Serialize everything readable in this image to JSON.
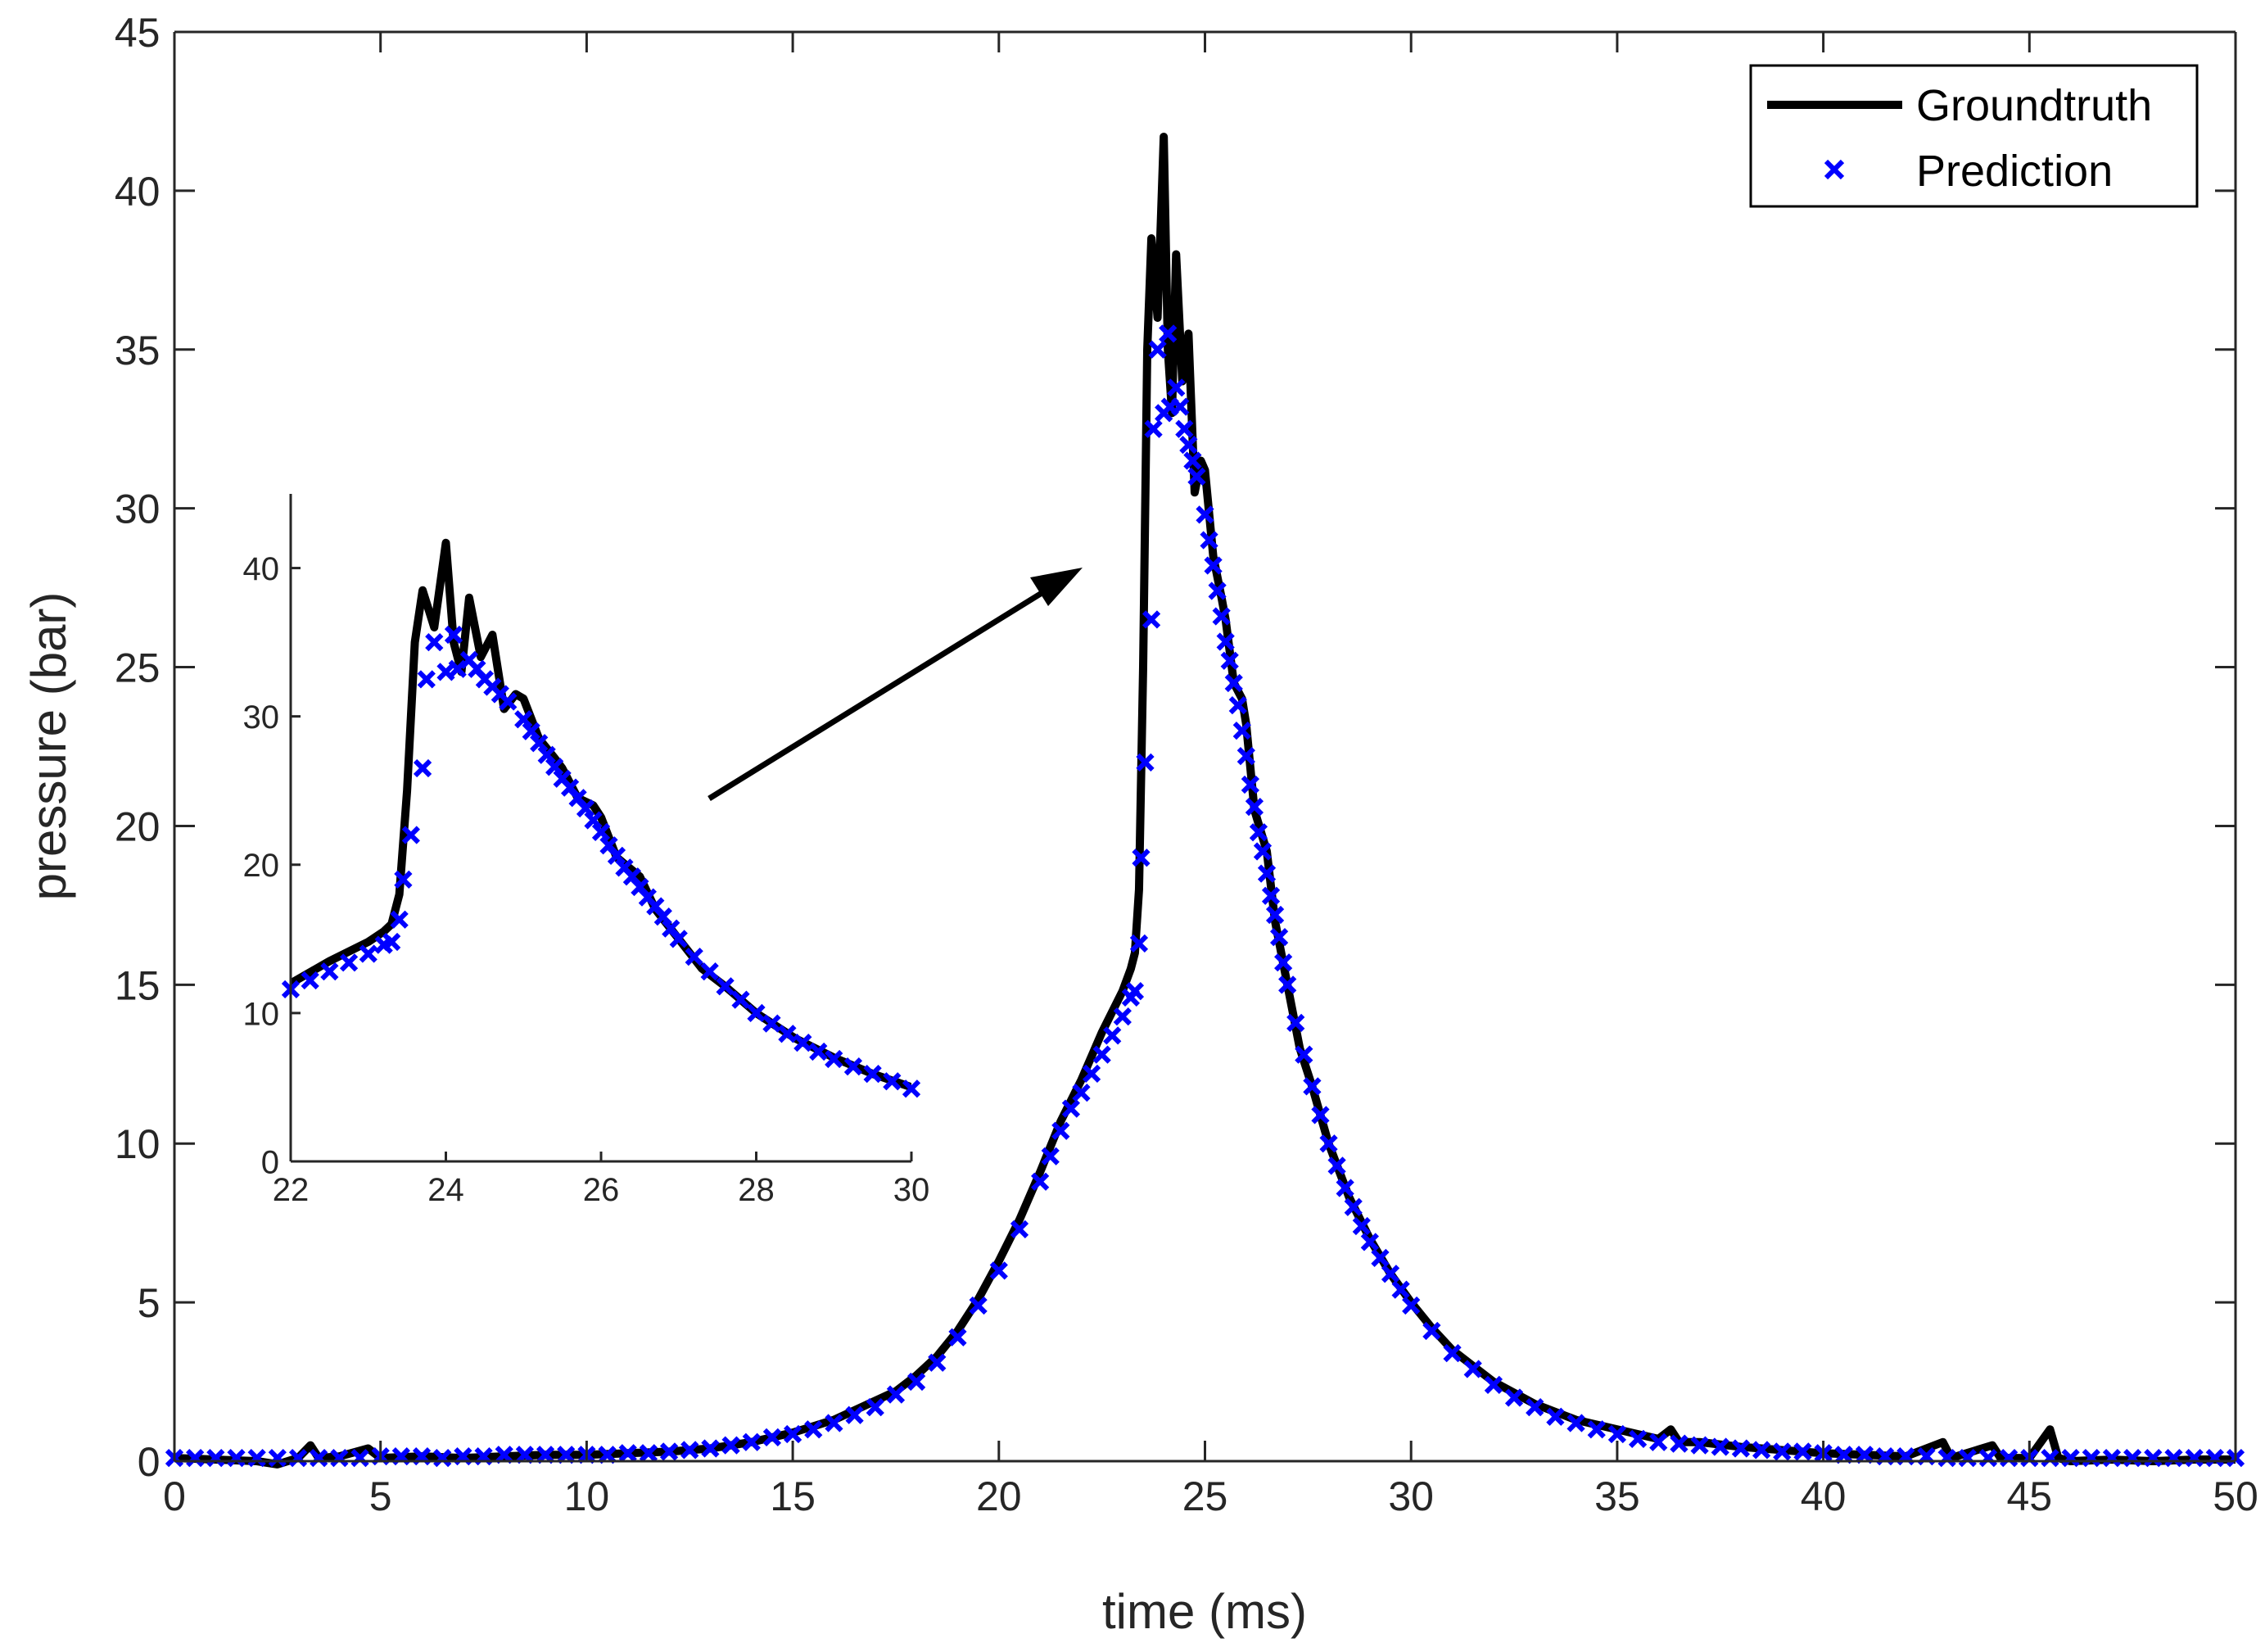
{
  "chart_data": {
    "type": "line",
    "xlabel": "time (ms)",
    "ylabel": "pressure (bar)",
    "xlim": [
      0,
      50
    ],
    "ylim": [
      0,
      45
    ],
    "xticks": [
      0,
      5,
      10,
      15,
      20,
      25,
      30,
      35,
      40,
      45,
      50
    ],
    "yticks": [
      0,
      5,
      10,
      15,
      20,
      25,
      30,
      35,
      40,
      45
    ],
    "grid": false,
    "legend_placement": "top-right",
    "series": [
      {
        "name": "Groundtruth",
        "style": "line",
        "color": "#000000",
        "points": [
          [
            0,
            0.1
          ],
          [
            1,
            0.05
          ],
          [
            2,
            0.0
          ],
          [
            2.5,
            -0.1
          ],
          [
            3,
            0.1
          ],
          [
            3.3,
            0.5
          ],
          [
            3.5,
            0.1
          ],
          [
            4,
            0.15
          ],
          [
            4.7,
            0.4
          ],
          [
            5,
            0.1
          ],
          [
            6,
            0.15
          ],
          [
            7,
            0.1
          ],
          [
            8,
            0.15
          ],
          [
            9,
            0.2
          ],
          [
            10,
            0.2
          ],
          [
            11,
            0.25
          ],
          [
            12,
            0.3
          ],
          [
            13,
            0.4
          ],
          [
            14,
            0.6
          ],
          [
            15,
            0.9
          ],
          [
            15.5,
            1.1
          ],
          [
            16,
            1.3
          ],
          [
            16.5,
            1.6
          ],
          [
            17,
            1.9
          ],
          [
            17.5,
            2.2
          ],
          [
            18,
            2.7
          ],
          [
            18.5,
            3.3
          ],
          [
            19,
            4.1
          ],
          [
            19.5,
            5.1
          ],
          [
            20,
            6.3
          ],
          [
            20.5,
            7.6
          ],
          [
            21,
            9.1
          ],
          [
            21.5,
            10.7
          ],
          [
            22,
            12.0
          ],
          [
            22.5,
            13.5
          ],
          [
            23,
            14.8
          ],
          [
            23.2,
            15.5
          ],
          [
            23.3,
            16
          ],
          [
            23.4,
            18
          ],
          [
            23.5,
            25
          ],
          [
            23.6,
            35
          ],
          [
            23.7,
            38.5
          ],
          [
            23.85,
            36
          ],
          [
            24.0,
            41.7
          ],
          [
            24.1,
            35
          ],
          [
            24.2,
            33
          ],
          [
            24.3,
            38
          ],
          [
            24.45,
            34
          ],
          [
            24.6,
            35.5
          ],
          [
            24.75,
            30.5
          ],
          [
            24.9,
            31.5
          ],
          [
            25.0,
            31.2
          ],
          [
            25.2,
            28.5
          ],
          [
            25.4,
            27.2
          ],
          [
            25.5,
            26.5
          ],
          [
            25.7,
            24.5
          ],
          [
            25.9,
            24
          ],
          [
            26.0,
            23.2
          ],
          [
            26.2,
            20.5
          ],
          [
            26.5,
            19.2
          ],
          [
            26.7,
            17
          ],
          [
            27.0,
            15
          ],
          [
            27.3,
            13
          ],
          [
            27.6,
            11.8
          ],
          [
            28,
            10
          ],
          [
            28.5,
            8.3
          ],
          [
            29,
            7
          ],
          [
            29.5,
            5.9
          ],
          [
            30,
            5
          ],
          [
            30.5,
            4.2
          ],
          [
            31,
            3.5
          ],
          [
            31.5,
            3
          ],
          [
            32,
            2.5
          ],
          [
            33,
            1.8
          ],
          [
            34,
            1.3
          ],
          [
            35,
            1.0
          ],
          [
            36,
            0.7
          ],
          [
            36.3,
            1.0
          ],
          [
            36.5,
            0.6
          ],
          [
            37,
            0.6
          ],
          [
            38,
            0.45
          ],
          [
            39,
            0.35
          ],
          [
            40,
            0.25
          ],
          [
            41,
            0.2
          ],
          [
            42,
            0.15
          ],
          [
            42.9,
            0.6
          ],
          [
            43.1,
            0.1
          ],
          [
            44.1,
            0.5
          ],
          [
            44.3,
            0.1
          ],
          [
            45,
            0.1
          ],
          [
            45.5,
            1.0
          ],
          [
            45.7,
            0.1
          ],
          [
            46,
            0.0
          ],
          [
            47,
            0.05
          ],
          [
            48,
            0.0
          ],
          [
            49,
            0.05
          ],
          [
            50,
            0.05
          ]
        ]
      },
      {
        "name": "Prediction",
        "style": "x-marker",
        "color": "#0000ff",
        "points": [
          [
            0,
            0.1
          ],
          [
            0.5,
            0.1
          ],
          [
            1,
            0.1
          ],
          [
            1.5,
            0.1
          ],
          [
            2,
            0.1
          ],
          [
            2.5,
            0.1
          ],
          [
            3,
            0.1
          ],
          [
            3.5,
            0.1
          ],
          [
            4,
            0.1
          ],
          [
            4.5,
            0.1
          ],
          [
            5,
            0.15
          ],
          [
            5.5,
            0.15
          ],
          [
            6,
            0.15
          ],
          [
            6.5,
            0.1
          ],
          [
            7,
            0.15
          ],
          [
            7.5,
            0.15
          ],
          [
            8,
            0.2
          ],
          [
            8.5,
            0.2
          ],
          [
            9,
            0.2
          ],
          [
            9.5,
            0.2
          ],
          [
            10,
            0.2
          ],
          [
            10.5,
            0.2
          ],
          [
            11,
            0.25
          ],
          [
            11.5,
            0.25
          ],
          [
            12,
            0.3
          ],
          [
            12.5,
            0.35
          ],
          [
            13,
            0.4
          ],
          [
            13.5,
            0.5
          ],
          [
            14,
            0.6
          ],
          [
            14.5,
            0.75
          ],
          [
            15,
            0.85
          ],
          [
            15.5,
            1.0
          ],
          [
            16,
            1.2
          ],
          [
            16.5,
            1.45
          ],
          [
            17,
            1.7
          ],
          [
            17.5,
            2.1
          ],
          [
            18,
            2.5
          ],
          [
            18.5,
            3.1
          ],
          [
            19,
            3.9
          ],
          [
            19.5,
            4.9
          ],
          [
            20,
            6.0
          ],
          [
            20.5,
            7.3
          ],
          [
            21,
            8.8
          ],
          [
            21.25,
            9.6
          ],
          [
            21.5,
            10.4
          ],
          [
            21.75,
            11.1
          ],
          [
            22,
            11.6
          ],
          [
            22.25,
            12.2
          ],
          [
            22.5,
            12.8
          ],
          [
            22.75,
            13.4
          ],
          [
            23,
            14.0
          ],
          [
            23.2,
            14.6
          ],
          [
            23.3,
            14.8
          ],
          [
            23.4,
            16.3
          ],
          [
            23.45,
            19
          ],
          [
            23.55,
            22
          ],
          [
            23.7,
            26.5
          ],
          [
            23.75,
            32.5
          ],
          [
            23.85,
            35
          ],
          [
            24.0,
            33
          ],
          [
            24.1,
            35.5
          ],
          [
            24.15,
            33.2
          ],
          [
            24.3,
            33.8
          ],
          [
            24.4,
            33.2
          ],
          [
            24.5,
            32.5
          ],
          [
            24.6,
            32
          ],
          [
            24.7,
            31.5
          ],
          [
            24.8,
            31
          ],
          [
            25.0,
            29.8
          ],
          [
            25.1,
            29
          ],
          [
            25.2,
            28.2
          ],
          [
            25.3,
            27.4
          ],
          [
            25.4,
            26.6
          ],
          [
            25.5,
            25.8
          ],
          [
            25.6,
            25.2
          ],
          [
            25.7,
            24.5
          ],
          [
            25.8,
            23.8
          ],
          [
            25.9,
            23
          ],
          [
            26.0,
            22.2
          ],
          [
            26.1,
            21.3
          ],
          [
            26.2,
            20.6
          ],
          [
            26.3,
            19.8
          ],
          [
            26.4,
            19.2
          ],
          [
            26.5,
            18.5
          ],
          [
            26.6,
            17.8
          ],
          [
            26.7,
            17.2
          ],
          [
            26.8,
            16.5
          ],
          [
            26.9,
            15.7
          ],
          [
            27,
            15
          ],
          [
            27.2,
            13.8
          ],
          [
            27.4,
            12.8
          ],
          [
            27.6,
            11.8
          ],
          [
            27.8,
            10.9
          ],
          [
            28,
            10
          ],
          [
            28.2,
            9.3
          ],
          [
            28.4,
            8.6
          ],
          [
            28.6,
            8.0
          ],
          [
            28.8,
            7.4
          ],
          [
            29,
            6.9
          ],
          [
            29.25,
            6.4
          ],
          [
            29.5,
            5.9
          ],
          [
            29.75,
            5.4
          ],
          [
            30,
            4.9
          ],
          [
            30.5,
            4.1
          ],
          [
            31,
            3.4
          ],
          [
            31.5,
            2.9
          ],
          [
            32,
            2.4
          ],
          [
            32.5,
            2.0
          ],
          [
            33,
            1.7
          ],
          [
            33.5,
            1.4
          ],
          [
            34,
            1.2
          ],
          [
            34.5,
            1.0
          ],
          [
            35,
            0.85
          ],
          [
            35.5,
            0.7
          ],
          [
            36,
            0.6
          ],
          [
            36.5,
            0.55
          ],
          [
            37,
            0.5
          ],
          [
            37.5,
            0.45
          ],
          [
            38,
            0.4
          ],
          [
            38.5,
            0.35
          ],
          [
            39,
            0.3
          ],
          [
            39.5,
            0.3
          ],
          [
            40,
            0.25
          ],
          [
            40.5,
            0.2
          ],
          [
            41,
            0.2
          ],
          [
            41.5,
            0.15
          ],
          [
            42,
            0.15
          ],
          [
            42.5,
            0.15
          ],
          [
            43,
            0.1
          ],
          [
            43.5,
            0.1
          ],
          [
            44,
            0.1
          ],
          [
            44.5,
            0.1
          ],
          [
            45,
            0.1
          ],
          [
            45.5,
            0.1
          ],
          [
            46,
            0.1
          ],
          [
            46.5,
            0.1
          ],
          [
            47,
            0.1
          ],
          [
            47.5,
            0.1
          ],
          [
            48,
            0.1
          ],
          [
            48.5,
            0.1
          ],
          [
            49,
            0.1
          ],
          [
            49.5,
            0.1
          ],
          [
            50,
            0.1
          ]
        ]
      }
    ],
    "inset": {
      "xlim": [
        22,
        30
      ],
      "ylim": [
        0,
        45
      ],
      "xticks": [
        22,
        24,
        26,
        28,
        30
      ],
      "yticks": [
        0,
        10,
        20,
        30,
        40
      ]
    },
    "annotations": [
      {
        "type": "arrow",
        "from": [
          13,
          16.7
        ],
        "to": [
          22,
          27.7
        ]
      }
    ]
  }
}
